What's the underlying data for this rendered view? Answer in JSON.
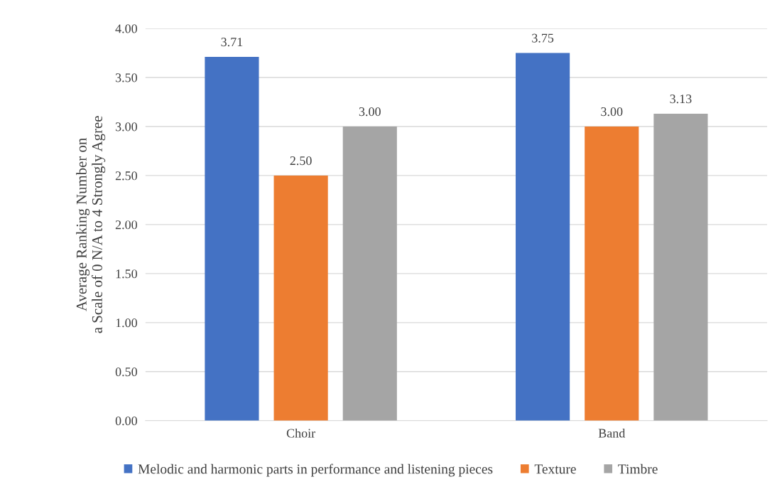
{
  "chart_data": {
    "type": "bar",
    "ylabel": "Average Ranking Number on\na Scale of 0 N/A to 4 Strongly Agree",
    "categories": [
      "Choir",
      "Band"
    ],
    "series": [
      {
        "name": "Melodic and harmonic parts in performance and listening pieces",
        "color": "#4472c4",
        "values": [
          3.71,
          3.75
        ],
        "value_labels": [
          "3.71",
          "3.75"
        ]
      },
      {
        "name": "Texture",
        "color": "#ed7d31",
        "values": [
          2.5,
          3.0
        ],
        "value_labels": [
          "2.50",
          "3.00"
        ]
      },
      {
        "name": "Timbre",
        "color": "#a5a5a5",
        "values": [
          3.0,
          3.13
        ],
        "value_labels": [
          "3.00",
          "3.13"
        ]
      }
    ],
    "ylim": [
      0,
      4
    ],
    "yticks": [
      {
        "value": 0,
        "label": "0.00"
      },
      {
        "value": 0.5,
        "label": "0.50"
      },
      {
        "value": 1,
        "label": "1.00"
      },
      {
        "value": 1.5,
        "label": "1.50"
      },
      {
        "value": 2,
        "label": "2.00"
      },
      {
        "value": 2.5,
        "label": "2.50"
      },
      {
        "value": 3,
        "label": "3.00"
      },
      {
        "value": 3.5,
        "label": "3.50"
      },
      {
        "value": 4,
        "label": "4.00"
      }
    ],
    "grid": "y",
    "legend": "bottom"
  }
}
